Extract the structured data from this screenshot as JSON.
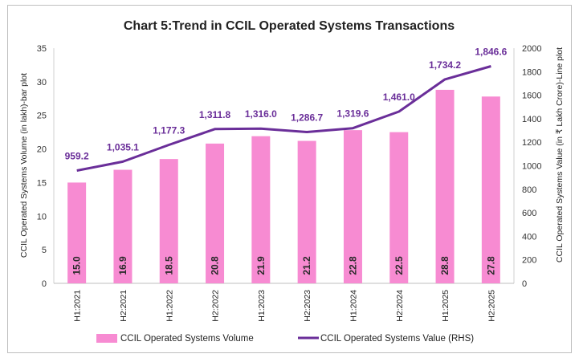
{
  "chart_data": {
    "type": "bar+line",
    "title": "Chart 5:Trend in CCIL Operated Systems Transactions",
    "categories": [
      "H1:2021",
      "H2:2021",
      "H1:2022",
      "H2:2022",
      "H1:2023",
      "H2:2023",
      "H1:2024",
      "H2:2024",
      "H1:2025",
      "H2:2025"
    ],
    "series": [
      {
        "name": "CCIL Operated Systems Volume",
        "type": "bar",
        "axis": "left",
        "values": [
          15.0,
          16.9,
          18.5,
          20.8,
          21.9,
          21.2,
          22.8,
          22.5,
          28.8,
          27.8
        ],
        "labels": [
          "15.0",
          "16.9",
          "18.5",
          "20.8",
          "21.9",
          "21.2",
          "22.8",
          "22.5",
          "28.8",
          "27.8"
        ],
        "color": "#f78bd2"
      },
      {
        "name": "CCIL Operated Systems  Value (RHS)",
        "type": "line",
        "axis": "right",
        "values": [
          959.2,
          1035.1,
          1177.3,
          1311.8,
          1316.0,
          1286.7,
          1319.6,
          1461.0,
          1734.2,
          1846.6
        ],
        "labels": [
          "959.2",
          "1,035.1",
          "1,177.3",
          "1,311.8",
          "1,316.0",
          "1,286.7",
          "1,319.6",
          "1,461.0",
          "1,734.2",
          "1,846.6"
        ],
        "color": "#6a2e99"
      }
    ],
    "ylabel": "CCIL Operated Systems Volume (in lakh)-bar plot",
    "y2label": "CCIL Operated Systems Value (in ₹ Lakh Crore)-Line plot",
    "ylim": [
      0,
      35
    ],
    "y2lim": [
      0,
      2000
    ],
    "yticks": [
      "0",
      "5",
      "10",
      "15",
      "20",
      "25",
      "30",
      "35"
    ],
    "y2ticks": [
      "0",
      "200",
      "400",
      "600",
      "800",
      "1000",
      "1200",
      "1400",
      "1600",
      "1800",
      "2000"
    ],
    "grid": false,
    "legend": "bottom"
  }
}
